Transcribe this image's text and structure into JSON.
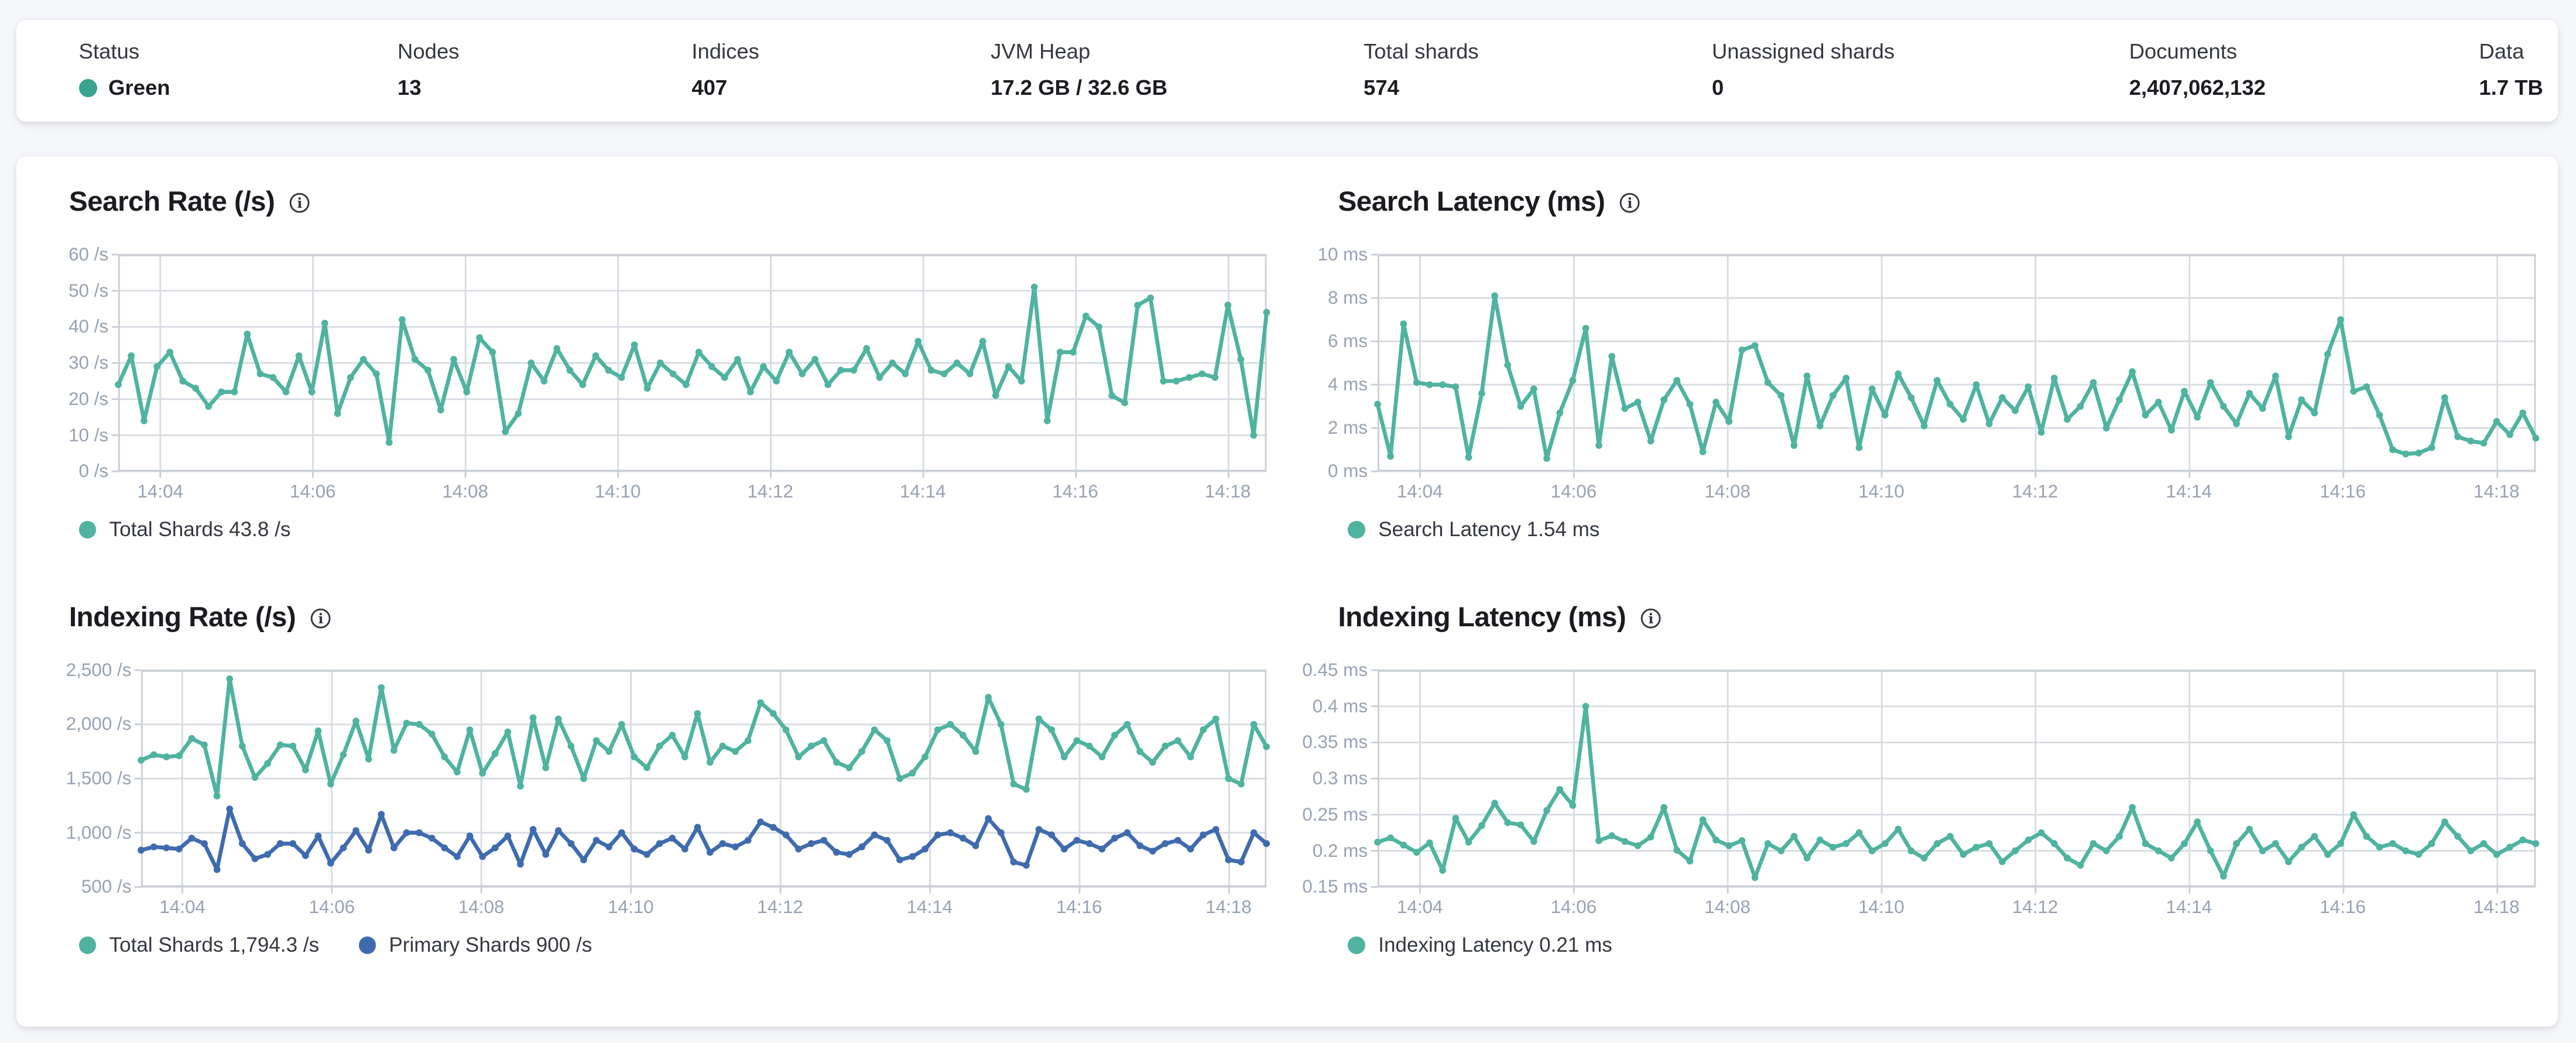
{
  "summary": {
    "items": [
      {
        "label": "Status",
        "value": "Green"
      },
      {
        "label": "Nodes",
        "value": "13"
      },
      {
        "label": "Indices",
        "value": "407"
      },
      {
        "label": "JVM Heap",
        "value": "17.2 GB / 32.6 GB"
      },
      {
        "label": "Total shards",
        "value": "574"
      },
      {
        "label": "Unassigned shards",
        "value": "0"
      },
      {
        "label": "Documents",
        "value": "2,407,062,132"
      },
      {
        "label": "Data",
        "value": "1.7 TB"
      }
    ],
    "status_dot_color": "#3aa291"
  },
  "colors": {
    "teal": "#4fb3a0",
    "blue": "#3f6bae",
    "grid": "#d7dbe2",
    "axis": "#c9cdd6",
    "tick_label": "#98a2b3",
    "title": "#1a1c21"
  },
  "chart_data": [
    {
      "type": "line",
      "title": "Search Rate (/s)",
      "ylabel": "/s",
      "ylim": [
        0,
        60
      ],
      "y_ticks": [
        "60 /s",
        "50 /s",
        "40 /s",
        "30 /s",
        "20 /s",
        "10 /s",
        "0 /s"
      ],
      "x_ticks": [
        "14:04",
        "14:06",
        "14:08",
        "14:10",
        "14:12",
        "14:14",
        "14:16",
        "14:18"
      ],
      "legend": [
        {
          "label": "Total Shards 43.8 /s",
          "color": "#4fb3a0"
        }
      ],
      "series": [
        {
          "name": "Total Shards",
          "color": "#4fb3a0",
          "values": [
            24,
            32,
            14,
            29,
            33,
            25,
            23,
            18,
            22,
            22,
            38,
            27,
            26,
            22,
            32,
            22,
            41,
            16,
            26,
            31,
            27,
            8,
            42,
            31,
            28,
            17,
            31,
            22,
            37,
            33,
            11,
            16,
            30,
            25,
            34,
            28,
            24,
            32,
            28,
            26,
            35,
            23,
            30,
            27,
            24,
            33,
            29,
            26,
            31,
            22,
            29,
            25,
            33,
            27,
            31,
            24,
            28,
            28,
            34,
            26,
            30,
            27,
            36,
            28,
            27,
            30,
            27,
            36,
            21,
            29,
            25,
            51,
            14,
            33,
            33,
            43,
            40,
            21,
            19,
            46,
            48,
            25,
            25,
            26,
            27,
            26,
            46,
            31,
            10,
            44
          ]
        }
      ]
    },
    {
      "type": "line",
      "title": "Search Latency (ms)",
      "ylabel": "ms",
      "ylim": [
        0,
        10
      ],
      "y_ticks": [
        "10 ms",
        "8 ms",
        "6 ms",
        "4 ms",
        "2 ms",
        "0 ms"
      ],
      "x_ticks": [
        "14:04",
        "14:06",
        "14:08",
        "14:10",
        "14:12",
        "14:14",
        "14:16",
        "14:18"
      ],
      "legend": [
        {
          "label": "Search Latency 1.54 ms",
          "color": "#4fb3a0"
        }
      ],
      "series": [
        {
          "name": "Search Latency",
          "color": "#4fb3a0",
          "values": [
            3.1,
            0.7,
            6.8,
            4.1,
            4.0,
            4.0,
            3.9,
            0.65,
            3.6,
            8.1,
            4.9,
            3.0,
            3.8,
            0.6,
            2.7,
            4.2,
            6.6,
            1.2,
            5.3,
            2.9,
            3.2,
            1.4,
            3.3,
            4.2,
            3.1,
            0.9,
            3.2,
            2.3,
            5.6,
            5.8,
            4.1,
            3.5,
            1.2,
            4.4,
            2.1,
            3.5,
            4.3,
            1.1,
            3.8,
            2.6,
            4.5,
            3.4,
            2.1,
            4.2,
            3.1,
            2.4,
            4.0,
            2.2,
            3.4,
            2.8,
            3.9,
            1.8,
            4.3,
            2.4,
            3.0,
            4.1,
            2.0,
            3.3,
            4.6,
            2.6,
            3.2,
            1.9,
            3.7,
            2.5,
            4.1,
            3.0,
            2.2,
            3.6,
            2.9,
            4.4,
            1.6,
            3.3,
            2.7,
            5.4,
            7.0,
            3.7,
            3.9,
            2.6,
            1.0,
            0.8,
            0.85,
            1.1,
            3.4,
            1.6,
            1.4,
            1.3,
            2.3,
            1.7,
            2.7,
            1.54
          ]
        }
      ]
    },
    {
      "type": "line",
      "title": "Indexing Rate (/s)",
      "ylabel": "/s",
      "ylim": [
        500,
        2500
      ],
      "y_ticks": [
        "2,500 /s",
        "2,000 /s",
        "1,500 /s",
        "1,000 /s",
        "500 /s"
      ],
      "x_ticks": [
        "14:04",
        "14:06",
        "14:08",
        "14:10",
        "14:12",
        "14:14",
        "14:16",
        "14:18"
      ],
      "legend": [
        {
          "label": "Total Shards 1,794.3 /s",
          "color": "#4fb3a0"
        },
        {
          "label": "Primary Shards 900 /s",
          "color": "#3f6bae"
        }
      ],
      "series": [
        {
          "name": "Total Shards",
          "color": "#4fb3a0",
          "values": [
            1670,
            1720,
            1700,
            1710,
            1870,
            1810,
            1340,
            2420,
            1800,
            1510,
            1640,
            1810,
            1800,
            1580,
            1940,
            1450,
            1720,
            2030,
            1680,
            2340,
            1760,
            2010,
            2000,
            1910,
            1700,
            1560,
            1950,
            1550,
            1730,
            1930,
            1430,
            2060,
            1600,
            2050,
            1800,
            1500,
            1850,
            1750,
            2000,
            1700,
            1600,
            1800,
            1900,
            1700,
            2100,
            1650,
            1800,
            1750,
            1850,
            2200,
            2100,
            1950,
            1700,
            1800,
            1850,
            1650,
            1600,
            1750,
            1950,
            1850,
            1500,
            1550,
            1700,
            1950,
            2000,
            1900,
            1750,
            2250,
            2000,
            1450,
            1400,
            2050,
            1950,
            1700,
            1850,
            1800,
            1700,
            1900,
            2000,
            1750,
            1650,
            1800,
            1850,
            1700,
            1950,
            2050,
            1500,
            1450,
            2000,
            1794
          ]
        },
        {
          "name": "Primary Shards",
          "color": "#3f6bae",
          "values": [
            840,
            870,
            860,
            850,
            950,
            900,
            660,
            1220,
            900,
            760,
            800,
            900,
            900,
            790,
            970,
            720,
            860,
            1020,
            840,
            1170,
            860,
            1000,
            1000,
            950,
            860,
            780,
            970,
            780,
            860,
            970,
            710,
            1030,
            800,
            1020,
            900,
            750,
            930,
            870,
            1000,
            850,
            800,
            900,
            950,
            850,
            1050,
            820,
            900,
            870,
            930,
            1100,
            1050,
            980,
            850,
            900,
            930,
            820,
            800,
            870,
            980,
            930,
            750,
            780,
            850,
            980,
            1000,
            950,
            880,
            1130,
            1000,
            730,
            700,
            1030,
            980,
            850,
            930,
            900,
            850,
            950,
            1000,
            880,
            830,
            900,
            930,
            850,
            980,
            1030,
            750,
            730,
            1000,
            900
          ]
        }
      ]
    },
    {
      "type": "line",
      "title": "Indexing Latency (ms)",
      "ylabel": "ms",
      "ylim": [
        0.15,
        0.45
      ],
      "y_ticks": [
        "0.45 ms",
        "0.4 ms",
        "0.35 ms",
        "0.3 ms",
        "0.25 ms",
        "0.2 ms",
        "0.15 ms"
      ],
      "x_ticks": [
        "14:04",
        "14:06",
        "14:08",
        "14:10",
        "14:12",
        "14:14",
        "14:16",
        "14:18"
      ],
      "legend": [
        {
          "label": "Indexing Latency 0.21 ms",
          "color": "#4fb3a0"
        }
      ],
      "series": [
        {
          "name": "Indexing Latency",
          "color": "#4fb3a0",
          "values": [
            0.212,
            0.218,
            0.208,
            0.198,
            0.211,
            0.173,
            0.245,
            0.212,
            0.235,
            0.266,
            0.239,
            0.236,
            0.213,
            0.256,
            0.285,
            0.263,
            0.4,
            0.214,
            0.221,
            0.213,
            0.207,
            0.219,
            0.26,
            0.201,
            0.186,
            0.243,
            0.215,
            0.207,
            0.214,
            0.163,
            0.21,
            0.2,
            0.22,
            0.19,
            0.215,
            0.205,
            0.21,
            0.225,
            0.2,
            0.21,
            0.23,
            0.2,
            0.19,
            0.21,
            0.22,
            0.195,
            0.205,
            0.21,
            0.185,
            0.2,
            0.215,
            0.225,
            0.21,
            0.19,
            0.18,
            0.21,
            0.2,
            0.22,
            0.26,
            0.21,
            0.2,
            0.19,
            0.21,
            0.24,
            0.2,
            0.165,
            0.21,
            0.23,
            0.2,
            0.21,
            0.185,
            0.205,
            0.22,
            0.195,
            0.21,
            0.25,
            0.22,
            0.205,
            0.21,
            0.2,
            0.195,
            0.21,
            0.24,
            0.22,
            0.2,
            0.21,
            0.195,
            0.205,
            0.215,
            0.21
          ]
        }
      ]
    }
  ]
}
